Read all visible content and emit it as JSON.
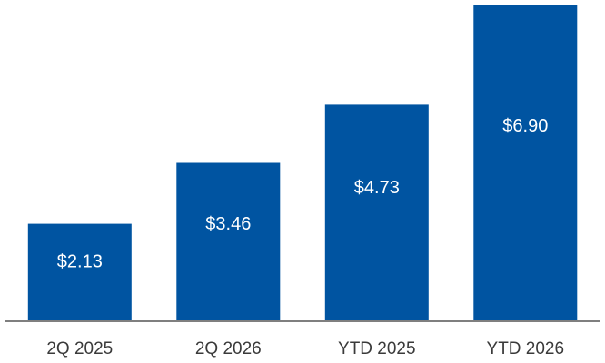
{
  "chart_data": {
    "type": "bar",
    "categories": [
      "2Q 2025",
      "2Q 2026",
      "YTD 2025",
      "YTD 2026"
    ],
    "values": [
      2.13,
      3.46,
      4.73,
      6.9
    ],
    "data_labels": [
      "$2.13",
      "$3.46",
      "$4.73",
      "$6.90"
    ],
    "title": "",
    "xlabel": "",
    "ylabel": "",
    "ylim": [
      0,
      6.9
    ],
    "grid": false,
    "legend": "none",
    "bar_color": "#0054a1",
    "axis_color": "#7f7f7f"
  }
}
